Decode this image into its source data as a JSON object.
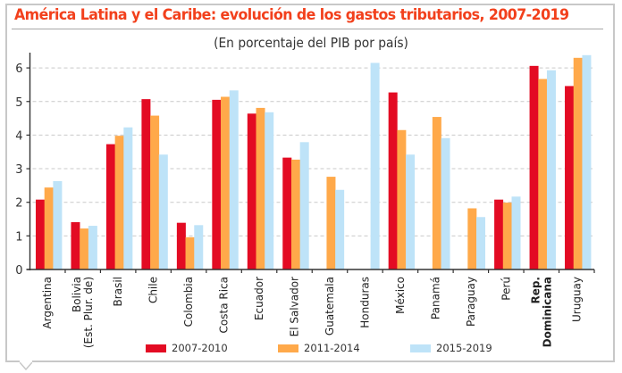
{
  "chart_data": {
    "type": "bar",
    "title": "América Latina y el Caribe: evolución de los gastos tributarios, 2007-2019",
    "subtitle": "(En porcentaje del PIB por país)",
    "xlabel": "",
    "ylabel": "",
    "ylim": [
      0,
      6.5
    ],
    "yticks": [
      0,
      1,
      2,
      3,
      4,
      5,
      6
    ],
    "grid": true,
    "legend_position": "bottom",
    "categories": [
      {
        "label": [
          "Argentina"
        ],
        "bold": false
      },
      {
        "label": [
          "Bolivia",
          "(Est. Plur. de)"
        ],
        "bold": false
      },
      {
        "label": [
          "Brasil"
        ],
        "bold": false
      },
      {
        "label": [
          "Chile"
        ],
        "bold": false
      },
      {
        "label": [
          "Colombia"
        ],
        "bold": false
      },
      {
        "label": [
          "Costa Rica"
        ],
        "bold": false
      },
      {
        "label": [
          "Ecuador"
        ],
        "bold": false
      },
      {
        "label": [
          "El Salvador"
        ],
        "bold": false
      },
      {
        "label": [
          "Guatemala"
        ],
        "bold": false
      },
      {
        "label": [
          "Honduras"
        ],
        "bold": false
      },
      {
        "label": [
          "México"
        ],
        "bold": false
      },
      {
        "label": [
          "Panamá"
        ],
        "bold": false
      },
      {
        "label": [
          "Paraguay"
        ],
        "bold": false
      },
      {
        "label": [
          "Perú"
        ],
        "bold": false
      },
      {
        "label": [
          "Rep.",
          "Dominicana"
        ],
        "bold": true
      },
      {
        "label": [
          "Uruguay"
        ],
        "bold": false
      }
    ],
    "series": [
      {
        "name": "2007-2010",
        "color": "#e30b23",
        "values": [
          2.08,
          1.41,
          3.73,
          5.07,
          1.39,
          5.05,
          4.64,
          3.33,
          null,
          null,
          5.27,
          null,
          null,
          2.08,
          6.06,
          5.46
        ]
      },
      {
        "name": "2011-2014",
        "color": "#ffa94a",
        "values": [
          2.44,
          1.22,
          3.98,
          4.58,
          0.96,
          5.14,
          4.81,
          3.27,
          2.76,
          null,
          4.15,
          4.54,
          1.82,
          1.99,
          5.67,
          6.3
        ]
      },
      {
        "name": "2015-2019",
        "color": "#bee3f8",
        "values": [
          2.63,
          1.3,
          4.23,
          3.42,
          1.32,
          5.33,
          4.68,
          3.79,
          2.37,
          6.15,
          3.42,
          3.91,
          1.56,
          2.17,
          5.93,
          6.38
        ]
      }
    ]
  },
  "colors": {
    "title": "#f2401c",
    "frame": "#c8c8c8",
    "grid": "#c9c9c9",
    "axis": "#333333"
  }
}
